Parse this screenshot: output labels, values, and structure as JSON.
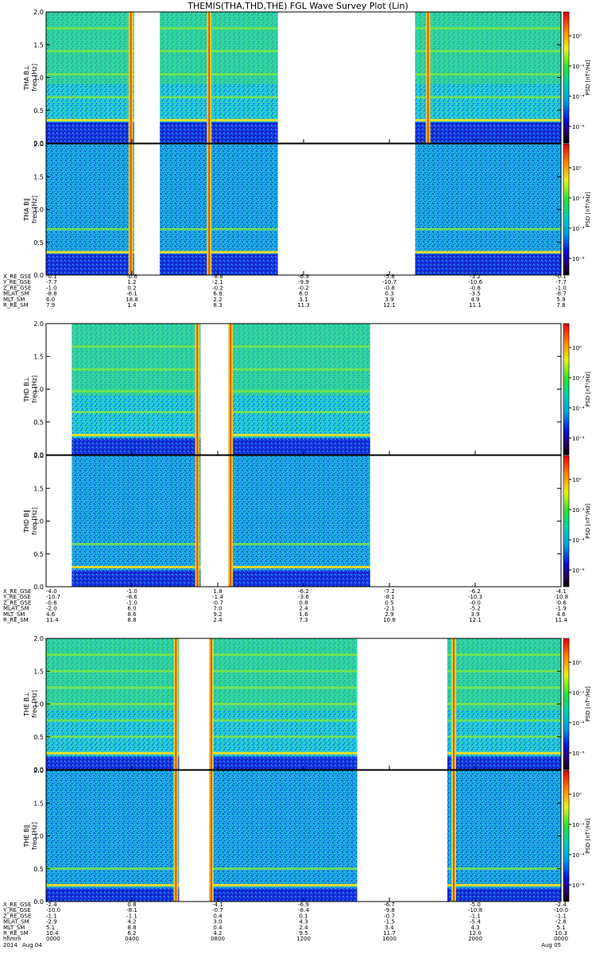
{
  "title": "THEMIS(THA,THD,THE) FGL Wave Survey Plot (Lin)",
  "chart_data": {
    "type": "heatmap",
    "title": "THEMIS(THA,THD,THE) FGL Wave Survey Plot (Lin)",
    "x_unit": "hhmm",
    "x_ticks": [
      "0000",
      "0400",
      "0800",
      "1200",
      "1600",
      "2000",
      "0000"
    ],
    "x_range_hours": [
      0,
      24
    ],
    "freq_range_hz": [
      0.0,
      2.0
    ],
    "y_ticks": [
      "0.0",
      "0.5",
      "1.0",
      "1.5",
      "2.0"
    ],
    "date_labels": {
      "year": "2014",
      "start": "Aug 04",
      "end": "Aug 05"
    },
    "colorbar": {
      "label": "PSD [nT²/Hz]",
      "tick_labels_upper": [
        "10⁰",
        "10⁻²",
        "10⁻⁴",
        "10⁻⁶"
      ],
      "tick_labels_lower": [
        "10⁰",
        "10⁻²",
        "10⁻⁴",
        "10⁻⁶"
      ],
      "scale": "log"
    },
    "panels": [
      {
        "id": "tha_bperp",
        "ylabel": "THA B⊥",
        "units": "freq [Hz]",
        "data_intervals_hours": [
          [
            0.0,
            4.1
          ],
          [
            5.3,
            10.8
          ],
          [
            17.2,
            24.0
          ]
        ],
        "bright_columns_hours": [
          3.95,
          7.6,
          17.8
        ],
        "harmonic_lines_hz": [
          0.35,
          0.7,
          1.05,
          1.4,
          1.75
        ],
        "base_band_hz": [
          0.0,
          0.32
        ]
      },
      {
        "id": "tha_bpar",
        "ylabel": "THA B∥",
        "units": "freq [Hz]",
        "data_intervals_hours": [
          [
            0.0,
            4.1
          ],
          [
            5.3,
            10.8
          ],
          [
            17.2,
            24.0
          ]
        ],
        "bright_columns_hours": [
          3.95,
          7.6
        ],
        "harmonic_lines_hz": [
          0.35,
          0.7
        ],
        "base_band_hz": [
          0.0,
          0.32
        ]
      },
      {
        "id": "thd_bperp",
        "ylabel": "THD B⊥",
        "units": "freq [Hz]",
        "data_intervals_hours": [
          [
            1.2,
            7.2
          ],
          [
            8.5,
            15.1
          ]
        ],
        "bright_columns_hours": [
          7.05,
          8.6
        ],
        "harmonic_lines_hz": [
          0.3,
          0.65,
          0.97,
          1.3,
          1.65
        ],
        "base_band_hz": [
          0.0,
          0.25
        ]
      },
      {
        "id": "thd_bpar",
        "ylabel": "THD B∥",
        "units": "freq [Hz]",
        "data_intervals_hours": [
          [
            1.2,
            7.2
          ],
          [
            8.5,
            15.1
          ]
        ],
        "bright_columns_hours": [
          7.05,
          8.6
        ],
        "harmonic_lines_hz": [
          0.3,
          0.65
        ],
        "base_band_hz": [
          0.0,
          0.25
        ]
      },
      {
        "id": "the_bperp",
        "ylabel": "THE B⊥",
        "units": "freq [Hz]",
        "data_intervals_hours": [
          [
            0.0,
            6.2
          ],
          [
            7.6,
            14.5
          ],
          [
            18.7,
            24.0
          ]
        ],
        "bright_columns_hours": [
          6.05,
          7.7,
          19.0
        ],
        "harmonic_lines_hz": [
          0.25,
          0.5,
          0.75,
          1.0,
          1.25,
          1.5,
          1.75
        ],
        "base_band_hz": [
          0.0,
          0.2
        ]
      },
      {
        "id": "the_bpar",
        "ylabel": "THE B∥",
        "units": "freq [Hz]",
        "data_intervals_hours": [
          [
            0.0,
            6.2
          ],
          [
            7.6,
            14.5
          ],
          [
            18.7,
            24.0
          ]
        ],
        "bright_columns_hours": [
          6.05,
          7.7,
          19.0
        ],
        "harmonic_lines_hz": [
          0.25,
          0.5
        ],
        "base_band_hz": [
          0.0,
          0.2
        ]
      }
    ],
    "orbit_tables": [
      {
        "rows": [
          {
            "label": "X_RE_GSE",
            "values": [
              "-0.1",
              "-0.6",
              "-8.8",
              "-6.9",
              "-5.8",
              "-3.2",
              "-0.1"
            ]
          },
          {
            "label": "Y_RE_GSE",
            "values": [
              "-7.7",
              "1.2",
              "-2.1",
              "-9.9",
              "-10.7",
              "-10.6",
              "-7.7"
            ]
          },
          {
            "label": "Z_RE_GSE",
            "values": [
              "-1.0",
              "0.2",
              "-0.2",
              "-0.2",
              "-0.8",
              "-0.8",
              "-1.0"
            ]
          },
          {
            "label": "MLAT_SM",
            "values": [
              "-8.8",
              "-6.1",
              "6.8",
              "6.0",
              "0.3",
              "-3.5",
              "-8.7"
            ]
          },
          {
            "label": "MLT_SM",
            "values": [
              "6.0",
              "18.8",
              "2.2",
              "3.1",
              "3.9",
              "4.9",
              "5.9"
            ]
          },
          {
            "label": "R_RE_SM",
            "values": [
              "7.9",
              "1.4",
              "8.3",
              "11.3",
              "12.1",
              "11.1",
              "7.8"
            ]
          }
        ]
      },
      {
        "rows": [
          {
            "label": "X_RE_GSE",
            "values": [
              "-4.0",
              "-1.0",
              "1.8",
              "-6.2",
              "-7.2",
              "-6.2",
              "-4.1"
            ]
          },
          {
            "label": "Y_RE_GSE",
            "values": [
              "-10.7",
              "-8.6",
              "-1.4",
              "-3.6",
              "-8.1",
              "-10.3",
              "-10.8"
            ]
          },
          {
            "label": "Z_RE_GSE",
            "values": [
              "-0.6",
              "-1.0",
              "-0.7",
              "0.8",
              "0.5",
              "-0.0",
              "-0.6"
            ]
          },
          {
            "label": "MLAT_SM",
            "values": [
              "-2.0",
              "6.0",
              "7.0",
              "2.4",
              "-2.1",
              "-5.2",
              "-1.9"
            ]
          },
          {
            "label": "MLT_SM",
            "values": [
              "4.6",
              "8.6",
              "9.2",
              "1.6",
              "2.9",
              "3.9",
              "4.6"
            ]
          },
          {
            "label": "R_RE_SM",
            "values": [
              "11.4",
              "8.8",
              "2.4",
              "7.3",
              "10.8",
              "12.1",
              "11.4"
            ]
          }
        ]
      },
      {
        "rows": [
          {
            "label": "X_RE_GSE",
            "values": [
              "-2.4",
              "0.8",
              "-4.1",
              "-6.9",
              "-6.7",
              "-5.0",
              "-2.4"
            ]
          },
          {
            "label": "Y_RE_GSE",
            "values": [
              "-10.0",
              "-8.1",
              "-0.7",
              "-8.4",
              "-9.8",
              "-10.8",
              "-10.0"
            ]
          },
          {
            "label": "Z_RE_GSE",
            "values": [
              "-1.1",
              "-1.1",
              "0.4",
              "0.1",
              "-0.7",
              "-1.1",
              "-1.1"
            ]
          },
          {
            "label": "MLAT_SM",
            "values": [
              "-2.9",
              "4.2",
              "3.0",
              "4.3",
              "-1.5",
              "-5.4",
              "-2.8"
            ]
          },
          {
            "label": "MLT_SM",
            "values": [
              "5.1",
              "8.8",
              "0.4",
              "2.4",
              "3.4",
              "4.3",
              "5.1"
            ]
          },
          {
            "label": "R_RE_SM",
            "values": [
              "10.4",
              "6.2",
              "4.2",
              "9.5",
              "11.7",
              "12.0",
              "10.3"
            ]
          },
          {
            "label": "hhmm",
            "values": [
              "0000",
              "0400",
              "0800",
              "1200",
              "1600",
              "2000",
              "0000"
            ]
          }
        ]
      }
    ]
  }
}
